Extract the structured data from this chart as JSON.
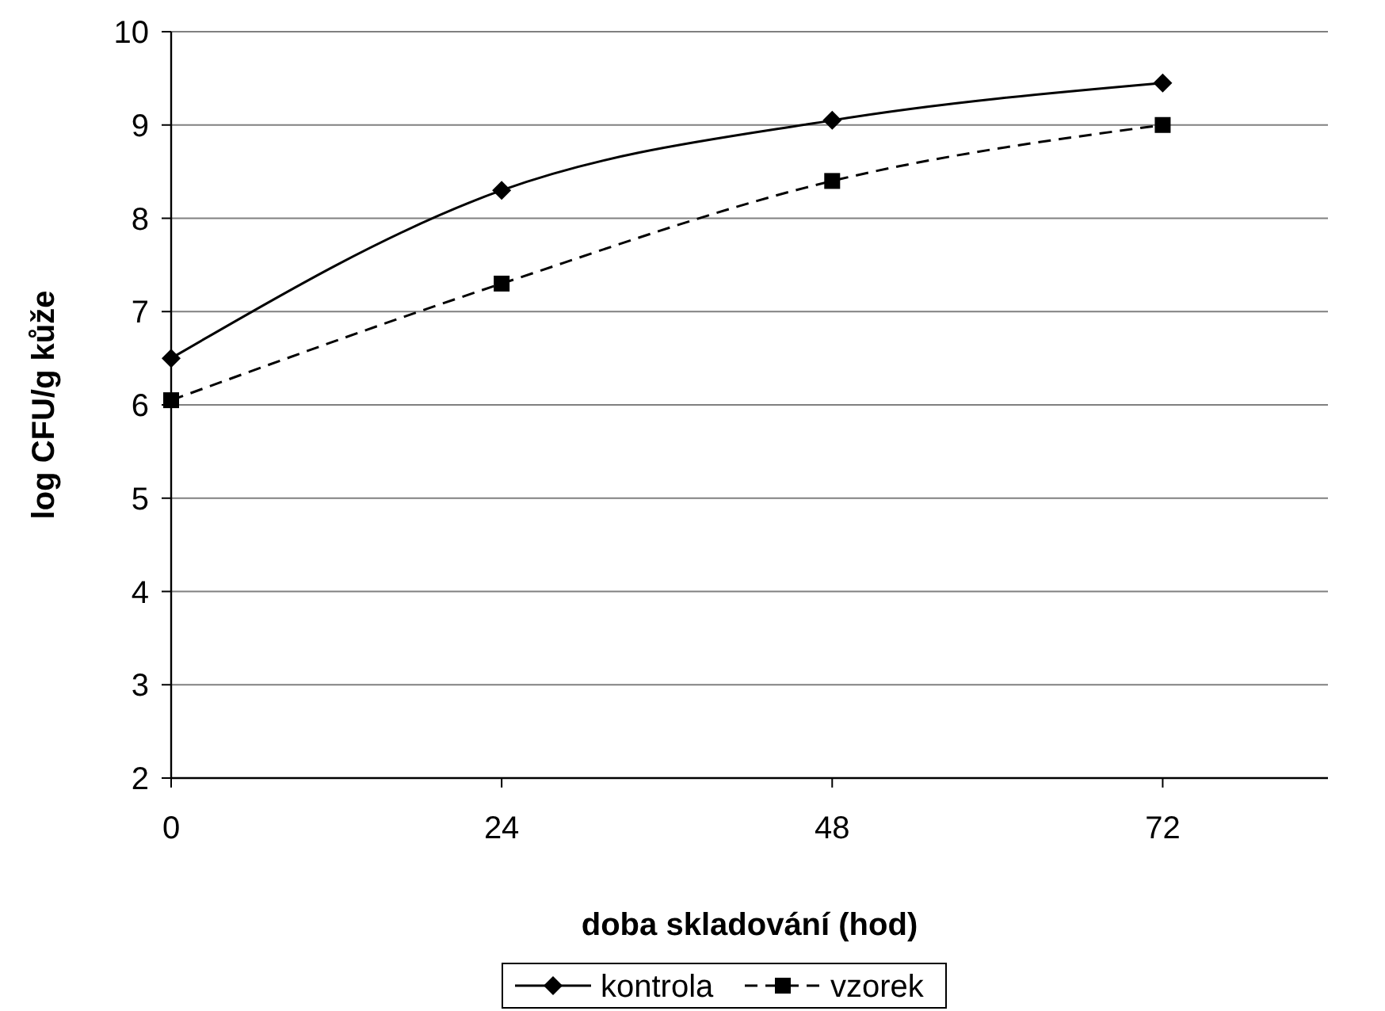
{
  "chart_data": {
    "type": "line",
    "xlabel": "doba skladování (hod)",
    "ylabel": "log CFU/g kůže",
    "x": [
      0,
      24,
      48,
      72
    ],
    "xlim": [
      0,
      84
    ],
    "xticks": [
      0,
      24,
      48,
      72
    ],
    "ylim": [
      2,
      10
    ],
    "yticks": [
      2,
      3,
      4,
      5,
      6,
      7,
      8,
      9,
      10
    ],
    "grid": "y",
    "legend": "bottom",
    "series": [
      {
        "name": "kontrola",
        "color": "#000000",
        "values": [
          6.5,
          8.3,
          9.05,
          9.45
        ],
        "marker": "diamond",
        "line_style": "solid"
      },
      {
        "name": "vzorek",
        "color": "#000000",
        "values": [
          6.05,
          7.3,
          8.4,
          9.0
        ],
        "marker": "square",
        "line_style": "dashed"
      }
    ]
  }
}
